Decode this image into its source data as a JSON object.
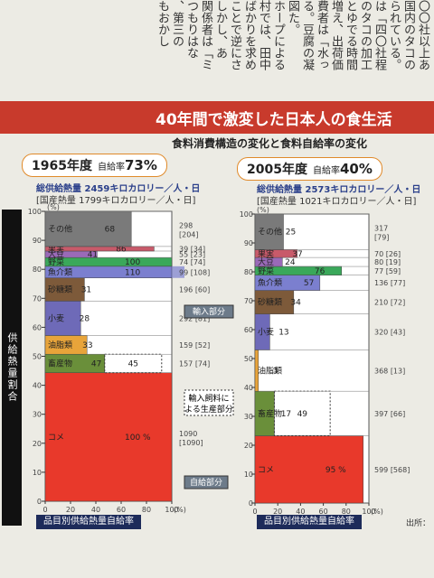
{
  "article_fragment": {
    "columns": [
      "〇〇社以上あ",
      "国内のタコの",
      "られている。",
      "は「四〇社程",
      "のタコの加工",
      "とゆでる時間",
      "増え、出荷価",
      "費者は「水っ",
      "る。豆腐の凝",
      "図た。",
      "ホープによる",
      "村では、田中",
      "ばかりを求め",
      "ことで逆にさ",
      "しかし、あ",
      "関係者は「ミ",
      "つもりはな",
      "、第三の",
      "もおかし"
    ]
  },
  "banner": {
    "title": "40年間で激変した日本人の食生活"
  },
  "subtitle": "食料消費構造の変化と食料自給率の変化",
  "y_axis_label": "供給熱量割合",
  "x_axis_caption": "品目別供給熱量自給率",
  "source": "出所：",
  "annotations": {
    "import": "輸入部分",
    "feed": "輸入飼料による生産部分",
    "self": "自給部分"
  },
  "colors": {
    "rice": "#e8392b",
    "livestock": "#6a8f3a",
    "oil": "#e8a43a",
    "wheat": "#6e6ab8",
    "sugar": "#7d5a3a",
    "fish": "#7b7fcf",
    "veg": "#3aa85a",
    "soy": "#9a6ab8",
    "fruit": "#c85a6a",
    "other": "#7a7a7a",
    "import_area": "#ffffff"
  },
  "chart_data": [
    {
      "type": "bar",
      "year_label": "1965年度",
      "self_rate_label": "自給率",
      "self_rate": "73%",
      "supply_line": "総供給熱量 2459キロカロリー／人・日",
      "domestic_line": "[国産熱量 1799キロカロリー／人・日]",
      "y_ticks": [
        "100",
        "90",
        "80",
        "70",
        "60",
        "50",
        "40",
        "30",
        "20",
        "10",
        "0"
      ],
      "y_unit": "(%)",
      "x_ticks": [
        "0",
        "20",
        "40",
        "60",
        "80",
        "100"
      ],
      "x_unit": "(%)",
      "items": [
        {
          "name": "コメ",
          "rate": 100,
          "rate_label": "100 %",
          "supply": 1090,
          "supply_domestic": 1090,
          "right_label": "1090",
          "right_label2": "[1090]",
          "color_key": "rice"
        },
        {
          "name": "畜産物",
          "rate": 47,
          "rate_label": "47",
          "feed_rate": 45,
          "feed_label": "45",
          "supply": 157,
          "supply_domestic": 74,
          "right_label": "157 [74]",
          "color_key": "livestock"
        },
        {
          "name": "油脂類",
          "rate": 33,
          "rate_label": "33",
          "supply": 159,
          "supply_domestic": 52,
          "right_label": "159 [52]",
          "color_key": "oil"
        },
        {
          "name": "小麦",
          "rate": 28,
          "rate_label": "28",
          "supply": 292,
          "supply_domestic": 81,
          "right_label": "292 [81]",
          "color_key": "wheat"
        },
        {
          "name": "砂糖類",
          "rate": 31,
          "rate_label": "31",
          "supply": 196,
          "supply_domestic": 60,
          "right_label": "196 [60]",
          "color_key": "sugar"
        },
        {
          "name": "魚介類",
          "rate": 110,
          "rate_label": "110",
          "supply": 99,
          "supply_domestic": 108,
          "right_label": "99 [108]",
          "color_key": "fish"
        },
        {
          "name": "野菜",
          "rate": 100,
          "rate_label": "100",
          "supply": 74,
          "supply_domestic": 74,
          "right_label": "74 [74]",
          "color_key": "veg"
        },
        {
          "name": "大豆",
          "rate": 41,
          "rate_label": "41",
          "supply": 55,
          "supply_domestic": 23,
          "right_label": "55 [23]",
          "color_key": "soy"
        },
        {
          "name": "果実",
          "rate": 86,
          "rate_label": "86",
          "supply": 39,
          "supply_domestic": 34,
          "right_label": "39 [34]",
          "color_key": "fruit"
        },
        {
          "name": "その他",
          "rate": 68,
          "rate_label": "68",
          "supply": 298,
          "supply_domestic": 204,
          "right_label": "298",
          "right_label2": "[204]",
          "color_key": "other"
        }
      ]
    },
    {
      "type": "bar",
      "year_label": "2005年度",
      "self_rate_label": "自給率",
      "self_rate": "40%",
      "supply_line": "総供給熱量 2573キロカロリー／人・日",
      "domestic_line": "[国産熱量 1021キロカロリー／人・日]",
      "y_ticks": [
        "100",
        "90",
        "80",
        "70",
        "60",
        "50",
        "40",
        "30",
        "20",
        "10",
        "0"
      ],
      "y_unit": "(%)",
      "x_ticks": [
        "0",
        "20",
        "40",
        "60",
        "80",
        "100"
      ],
      "x_unit": "(%)",
      "items": [
        {
          "name": "コメ",
          "rate": 95,
          "rate_label": "95 %",
          "supply": 599,
          "supply_domestic": 568,
          "right_label": "599 [568]",
          "color_key": "rice"
        },
        {
          "name": "畜産物",
          "rate": 17,
          "rate_label": "17",
          "feed_rate": 49,
          "feed_label": "49",
          "supply": 397,
          "supply_domestic": 66,
          "right_label": "397 [66]",
          "color_key": "livestock"
        },
        {
          "name": "油脂類",
          "rate": 3,
          "rate_label": "3",
          "supply": 368,
          "supply_domestic": 13,
          "right_label": "368 [13]",
          "color_key": "oil"
        },
        {
          "name": "小麦",
          "rate": 13,
          "rate_label": "13",
          "supply": 320,
          "supply_domestic": 43,
          "right_label": "320 [43]",
          "color_key": "wheat"
        },
        {
          "name": "砂糖類",
          "rate": 34,
          "rate_label": "34",
          "supply": 210,
          "supply_domestic": 72,
          "right_label": "210 [72]",
          "color_key": "sugar"
        },
        {
          "name": "魚介類",
          "rate": 57,
          "rate_label": "57",
          "supply": 136,
          "supply_domestic": 77,
          "right_label": "136 [77]",
          "color_key": "fish"
        },
        {
          "name": "野菜",
          "rate": 76,
          "rate_label": "76",
          "supply": 77,
          "supply_domestic": 59,
          "right_label": "77 [59]",
          "color_key": "veg"
        },
        {
          "name": "大豆",
          "rate": 24,
          "rate_label": "24",
          "supply": 80,
          "supply_domestic": 19,
          "right_label": "80 [19]",
          "color_key": "soy"
        },
        {
          "name": "果実",
          "rate": 37,
          "rate_label": "37",
          "supply": 70,
          "supply_domestic": 26,
          "right_label": "70 [26]",
          "color_key": "fruit"
        },
        {
          "name": "その他",
          "rate": 25,
          "rate_label": "25",
          "supply": 317,
          "supply_domestic": 79,
          "right_label": "317",
          "right_label2": "[79]",
          "color_key": "other"
        }
      ]
    }
  ]
}
